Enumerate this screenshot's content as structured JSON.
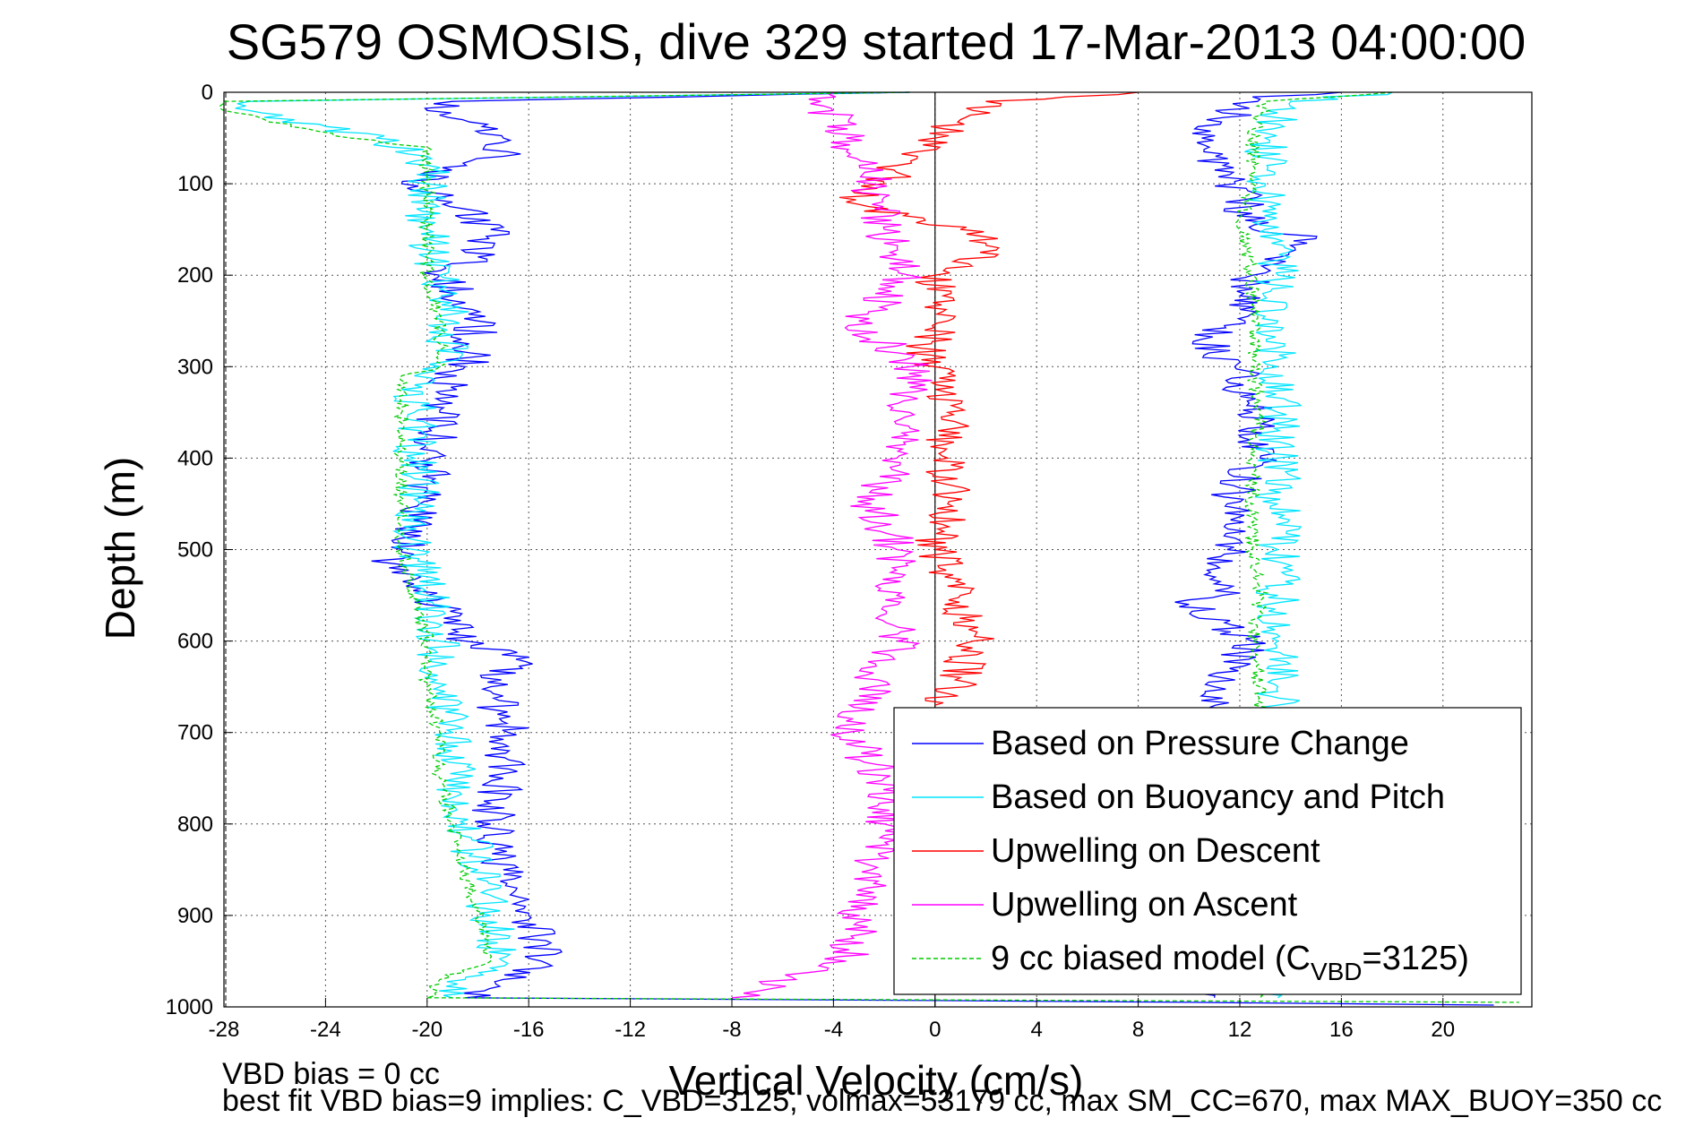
{
  "chart_data": {
    "type": "line",
    "title": "SG579 OSMOSIS, dive 329 started 17-Mar-2013 04:00:00",
    "xlabel": "Vertical Velocity (cm/s)",
    "ylabel": "Depth (m)",
    "xlim": [
      -28,
      23.5
    ],
    "ylim": [
      0,
      1000
    ],
    "y_reversed": true,
    "x_ticks": [
      -28,
      -24,
      -20,
      -16,
      -12,
      -8,
      -4,
      0,
      4,
      8,
      12,
      16,
      20
    ],
    "y_ticks": [
      0,
      100,
      200,
      300,
      400,
      500,
      600,
      700,
      800,
      900,
      1000
    ],
    "grid": true,
    "legend_position": "bottom-right",
    "legend": [
      {
        "label": "Based on Pressure Change",
        "color": "#0000ff",
        "style": "solid"
      },
      {
        "label": "Based on Buoyancy and Pitch",
        "color": "#00e5ff",
        "style": "solid"
      },
      {
        "label": "Upwelling on Descent",
        "color": "#ff0000",
        "style": "solid"
      },
      {
        "label": "Upwelling on Ascent",
        "color": "#ff00ff",
        "style": "solid"
      },
      {
        "label": "9 cc biased model (C",
        "label_sub": "VBD",
        "label_suffix": "=3125)",
        "color": "#00cc00",
        "style": "dashed"
      }
    ],
    "series": [
      {
        "name": "Based on Pressure Change",
        "color": "#0000ff",
        "segments": [
          {
            "depth": [
              0,
              10,
              20,
              50,
              70,
              100,
              120,
              150,
              180,
              200,
              250,
              300,
              305,
              350,
              400,
              450,
              500,
              520,
              550,
              600,
              620,
              650,
              700,
              750,
              800,
              850,
              900,
              950,
              970,
              990
            ],
            "x": [
              -1,
              -19,
              -20,
              -17,
              -17,
              -21,
              -19,
              -17.5,
              -18,
              -19.5,
              -18,
              -18.5,
              -19,
              -19.5,
              -19.8,
              -20.3,
              -21,
              -21.5,
              -20,
              -18.5,
              -16.5,
              -17.5,
              -16.8,
              -17,
              -17.5,
              -17,
              -16,
              -15.5,
              -17,
              -18.5
            ]
          },
          {
            "depth": [
              990,
              993,
              995,
              998
            ],
            "x": [
              -18.5,
              0,
              10,
              22
            ]
          },
          {
            "depth": [
              0,
              5,
              15,
              50,
              100,
              150,
              160,
              200,
              250,
              270,
              300,
              350,
              400,
              450,
              500,
              550,
              560,
              600,
              650,
              700,
              750,
              800,
              850,
              900,
              950,
              990
            ],
            "x": [
              16,
              12.5,
              12,
              10.5,
              11.8,
              12.5,
              15,
              12.5,
              12.2,
              10.5,
              11.8,
              12.5,
              12.8,
              11.5,
              11.5,
              11.3,
              10,
              12.5,
              11,
              11.5,
              11.2,
              11.3,
              11.2,
              11,
              11,
              11
            ]
          }
        ]
      },
      {
        "name": "Based on Buoyancy and Pitch",
        "color": "#00e5ff",
        "segments": [
          {
            "depth": [
              0,
              10,
              20,
              50,
              70,
              100,
              150,
              200,
              250,
              300,
              310,
              350,
              400,
              450,
              500,
              550,
              600,
              650,
              700,
              750,
              800,
              850,
              900,
              950,
              970,
              990
            ],
            "x": [
              -1,
              -27,
              -27,
              -22,
              -20,
              -20,
              -20,
              -19.5,
              -19,
              -19.5,
              -20.5,
              -20.5,
              -20.5,
              -20.3,
              -20.5,
              -20,
              -19.5,
              -19.5,
              -19,
              -18.8,
              -18.5,
              -18,
              -17.5,
              -17,
              -18.5,
              -19
            ]
          },
          {
            "depth": [
              0,
              10,
              50,
              100,
              150,
              200,
              250,
              300,
              350,
              400,
              450,
              500,
              550,
              600,
              650,
              700,
              750,
              800,
              850,
              900,
              950,
              990
            ],
            "x": [
              18,
              14,
              13,
              13,
              13,
              13.5,
              13.5,
              13.5,
              13.5,
              13.5,
              13.5,
              13.5,
              13.5,
              13.5,
              13.5,
              13.5,
              13.5,
              13.5,
              13.5,
              13.5,
              13.5,
              13.5
            ]
          }
        ]
      },
      {
        "name": "Upwelling on Descent",
        "color": "#ff0000",
        "segments": [
          {
            "depth": [
              0,
              10,
              30,
              50,
              80,
              100,
              120,
              150,
              170,
              200,
              250,
              280,
              300,
              350,
              400,
              450,
              500,
              550,
              600,
              640,
              670
            ],
            "x": [
              8,
              2,
              1,
              0,
              -1.5,
              -2,
              -3.5,
              1,
              2.5,
              0,
              0.5,
              -0.5,
              0,
              0.5,
              0.5,
              0.5,
              0,
              1,
              1.5,
              1,
              0
            ]
          }
        ]
      },
      {
        "name": "Upwelling on Ascent",
        "color": "#ff00ff",
        "segments": [
          {
            "depth": [
              0,
              10,
              50,
              100,
              150,
              200,
              250,
              300,
              350,
              400,
              450,
              500,
              550,
              600,
              650,
              700,
              750,
              800,
              850,
              900,
              950,
              990
            ],
            "x": [
              -4,
              -4.5,
              -3.5,
              -2.5,
              -2,
              -1,
              -3,
              -1,
              -1,
              -1.5,
              -2.5,
              -1.5,
              -1.5,
              -1.5,
              -2.5,
              -3.5,
              -2,
              -2,
              -2.5,
              -3,
              -3.5,
              -8
            ]
          }
        ]
      },
      {
        "name": "9 cc biased model (CVBD=3125)",
        "color": "#00cc00",
        "dashed": true,
        "segments": [
          {
            "depth": [
              0,
              10,
              20,
              50,
              60,
              100,
              150,
              200,
              250,
              300,
              310,
              350,
              400,
              450,
              500,
              550,
              600,
              650,
              700,
              750,
              800,
              850,
              900,
              950,
              970,
              990
            ],
            "x": [
              -1,
              -28,
              -28,
              -23,
              -20,
              -20,
              -20,
              -20,
              -19.5,
              -19.5,
              -21,
              -21,
              -21,
              -21,
              -21,
              -20.5,
              -20,
              -20,
              -19.5,
              -19.5,
              -19,
              -18.5,
              -18,
              -17.5,
              -19.5,
              -20
            ]
          },
          {
            "depth": [
              990,
              995
            ],
            "x": [
              -20,
              23
            ]
          },
          {
            "depth": [
              0,
              10,
              50,
              100,
              150,
              200,
              250,
              300,
              350,
              400,
              450,
              500,
              550,
              600,
              650,
              700,
              750,
              800,
              850,
              900,
              950,
              990
            ],
            "x": [
              18,
              13,
              12.5,
              12.5,
              12,
              12.5,
              12.5,
              12.5,
              12.8,
              12.5,
              12.5,
              12.5,
              12.8,
              12.5,
              12.8,
              12.8,
              12.8,
              12.8,
              12.8,
              12.8,
              12.8,
              12.8
            ]
          }
        ]
      }
    ]
  },
  "footer": {
    "line1": "VBD bias = 0 cc",
    "line2": "best fit VBD bias=9 implies: C_VBD=3125, volmax=53179 cc, max SM_CC=670, max MAX_BUOY=350 cc"
  }
}
